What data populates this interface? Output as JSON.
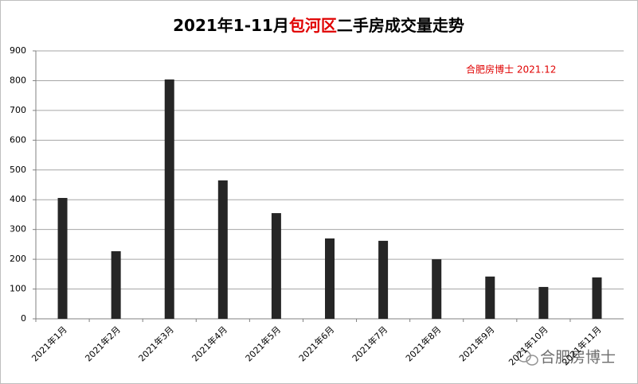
{
  "chart_data": {
    "type": "bar",
    "title_parts": [
      {
        "text": "2021年1-11月",
        "color": "#000000"
      },
      {
        "text": "包河区",
        "color": "#e00000"
      },
      {
        "text": "二手房成交量走势",
        "color": "#000000"
      }
    ],
    "annotation": "合肥房博士 2021.12",
    "annotation_color": "#e00000",
    "watermark": "合肥房博士",
    "categories": [
      "2021年1月",
      "2021年2月",
      "2021年3月",
      "2021年4月",
      "2021年5月",
      "2021年6月",
      "2021年7月",
      "2021年8月",
      "2021年9月",
      "2021年10月",
      "2021年11月"
    ],
    "values": [
      406,
      227,
      804,
      465,
      355,
      270,
      262,
      200,
      142,
      107,
      139
    ],
    "color": "#262626",
    "ylim": [
      0,
      900
    ],
    "yticks": [
      0,
      100,
      200,
      300,
      400,
      500,
      600,
      700,
      800,
      900
    ],
    "grid": true
  }
}
